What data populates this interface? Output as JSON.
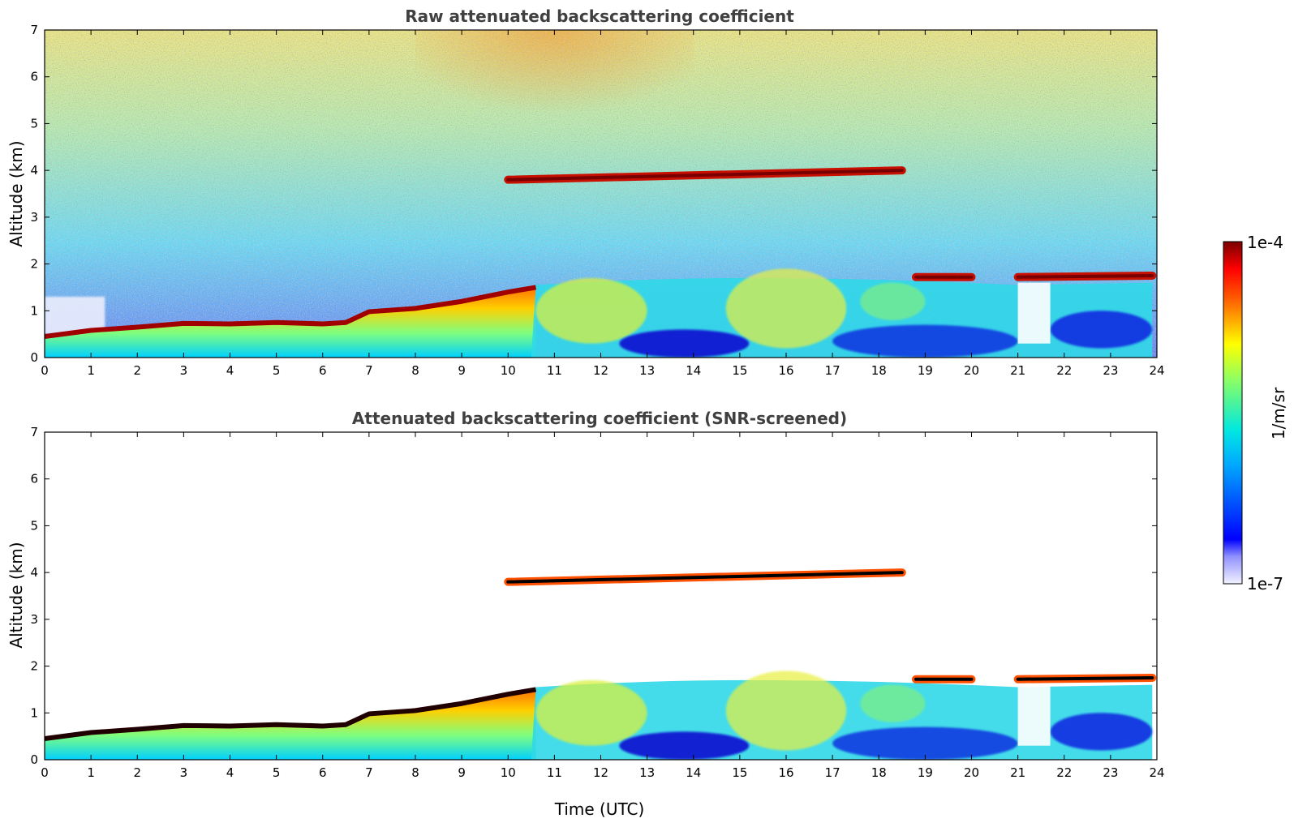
{
  "chart_data": [
    {
      "type": "heatmap",
      "title": "Raw attenuated backscattering coefficient",
      "xlabel": "",
      "ylabel": "Altitude (km)",
      "xlim": [
        0,
        24
      ],
      "ylim": [
        0,
        7
      ],
      "x_ticks": [
        "0",
        "1",
        "2",
        "3",
        "4",
        "5",
        "6",
        "7",
        "8",
        "9",
        "10",
        "11",
        "12",
        "13",
        "14",
        "15",
        "16",
        "17",
        "18",
        "19",
        "20",
        "21",
        "22",
        "23",
        "24"
      ],
      "y_ticks": [
        "0",
        "1",
        "2",
        "3",
        "4",
        "5",
        "6",
        "7"
      ],
      "screened": false,
      "features": [
        {
          "kind": "boundary_layer_top",
          "times": [
            0,
            1,
            2,
            3,
            4,
            5,
            6,
            6.5,
            7,
            8,
            9,
            10,
            10.6
          ],
          "altitudes": [
            0.45,
            0.58,
            0.65,
            0.73,
            0.72,
            0.75,
            0.72,
            0.75,
            0.98,
            1.05,
            1.2,
            1.4,
            1.5
          ]
        },
        {
          "kind": "cloud_layer",
          "time_start": 10.0,
          "time_end": 18.5,
          "alt_start": 3.8,
          "alt_end": 4.0
        },
        {
          "kind": "cloud_layer",
          "time_start": 18.8,
          "time_end": 20.0,
          "alt_start": 1.72,
          "alt_end": 1.72
        },
        {
          "kind": "cloud_layer",
          "time_start": 21.0,
          "time_end": 23.9,
          "alt_start": 1.72,
          "alt_end": 1.75
        }
      ]
    },
    {
      "type": "heatmap",
      "title": "Attenuated backscattering coefficient (SNR-screened)",
      "xlabel": "Time (UTC)",
      "ylabel": "Altitude (km)",
      "xlim": [
        0,
        24
      ],
      "ylim": [
        0,
        7
      ],
      "x_ticks": [
        "0",
        "1",
        "2",
        "3",
        "4",
        "5",
        "6",
        "7",
        "8",
        "9",
        "10",
        "11",
        "12",
        "13",
        "14",
        "15",
        "16",
        "17",
        "18",
        "19",
        "20",
        "21",
        "22",
        "23",
        "24"
      ],
      "y_ticks": [
        "0",
        "1",
        "2",
        "3",
        "4",
        "5",
        "6",
        "7"
      ],
      "screened": true,
      "features": [
        {
          "kind": "boundary_layer_top",
          "times": [
            0,
            1,
            2,
            3,
            4,
            5,
            6,
            6.5,
            7,
            8,
            9,
            10,
            10.6
          ],
          "altitudes": [
            0.45,
            0.58,
            0.65,
            0.73,
            0.72,
            0.75,
            0.72,
            0.75,
            0.98,
            1.05,
            1.2,
            1.4,
            1.5
          ]
        },
        {
          "kind": "cloud_layer",
          "time_start": 10.0,
          "time_end": 18.5,
          "alt_start": 3.8,
          "alt_end": 4.0
        },
        {
          "kind": "cloud_layer",
          "time_start": 18.8,
          "time_end": 20.0,
          "alt_start": 1.72,
          "alt_end": 1.72
        },
        {
          "kind": "cloud_layer",
          "time_start": 21.0,
          "time_end": 23.9,
          "alt_start": 1.72,
          "alt_end": 1.75
        }
      ]
    }
  ],
  "colorbar": {
    "label": "1/m/sr",
    "max_label": "1e-4",
    "min_label": "1e-7",
    "scale": "log",
    "colormap": "jet",
    "colors": [
      "#ffffff",
      "#0000ff",
      "#00ffff",
      "#ffff00",
      "#ff0000",
      "#800000"
    ]
  }
}
